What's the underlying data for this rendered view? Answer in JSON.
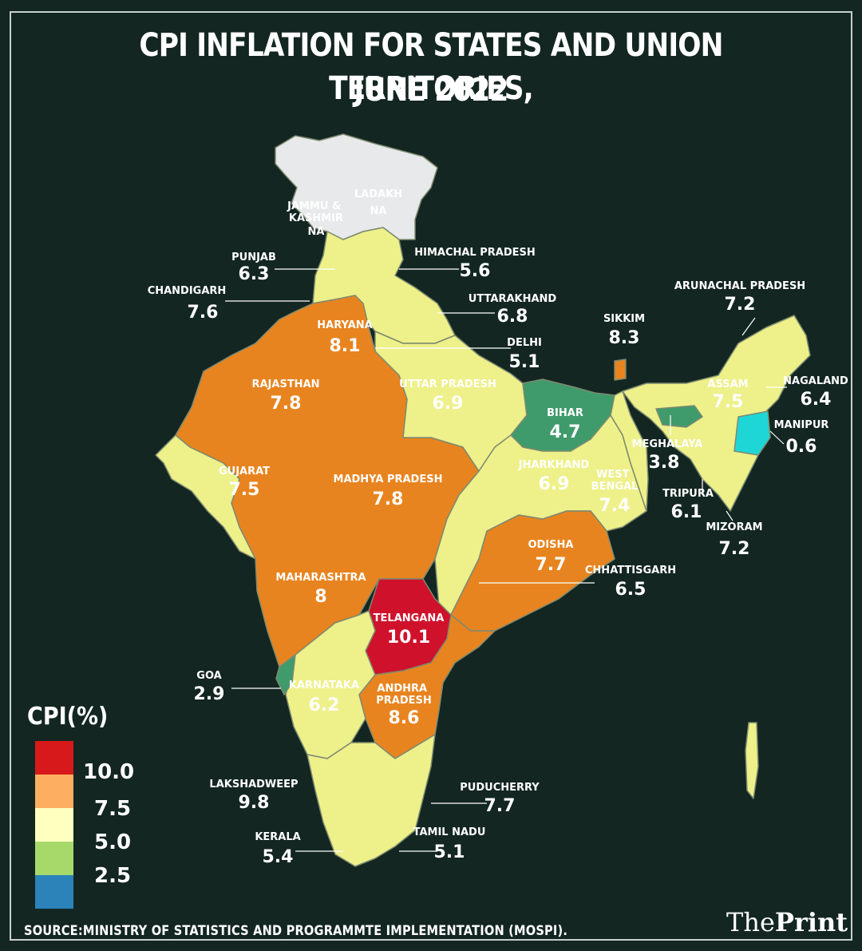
{
  "title_line1": "CPI INFLATION FOR STATES AND UNION TERRITORIES,",
  "title_line2": "JUNE 2022",
  "legend": {
    "title": "CPI(%)",
    "scale": [
      {
        "label": "10.0",
        "color": "#d7191c"
      },
      {
        "label": "7.5",
        "color": "#fdae61"
      },
      {
        "label": "5.0",
        "color": "#ffffbf"
      },
      {
        "label": "2.5",
        "color": "#a6d96a"
      },
      {
        "label": "",
        "color": "#2b83ba"
      }
    ]
  },
  "colors": {
    "background": "#132621",
    "na": "#e8e9ea",
    "low_green": "#3f9b6b",
    "yellow": "#eef08a",
    "orange": "#e8841f",
    "red": "#d0112b",
    "cyan": "#1fd6d6"
  },
  "regions": [
    {
      "name": "LADAKH",
      "value": "NA"
    },
    {
      "name": "JAMMU & KASHMIR",
      "value": "NA"
    },
    {
      "name": "PUNJAB",
      "value": "6.3"
    },
    {
      "name": "HIMACHAL PRADESH",
      "value": "5.6"
    },
    {
      "name": "CHANDIGARH",
      "value": "7.6"
    },
    {
      "name": "UTTARAKHAND",
      "value": "6.8"
    },
    {
      "name": "HARYANA",
      "value": "8.1"
    },
    {
      "name": "DELHI",
      "value": "5.1"
    },
    {
      "name": "RAJASTHAN",
      "value": "7.8"
    },
    {
      "name": "UTTAR PRADESH",
      "value": "6.9"
    },
    {
      "name": "BIHAR",
      "value": "4.7"
    },
    {
      "name": "SIKKIM",
      "value": "8.3"
    },
    {
      "name": "ARUNACHAL PRADESH",
      "value": "7.2"
    },
    {
      "name": "ASSAM",
      "value": "7.5"
    },
    {
      "name": "NAGALAND",
      "value": "6.4"
    },
    {
      "name": "MANIPUR",
      "value": "0.6"
    },
    {
      "name": "MEGHALAYA",
      "value": "3.8"
    },
    {
      "name": "GUJARAT",
      "value": "7.5"
    },
    {
      "name": "MADHYA PRADESH",
      "value": "7.8"
    },
    {
      "name": "JHARKHAND",
      "value": "6.9"
    },
    {
      "name": "WEST BENGAL",
      "value": "7.4"
    },
    {
      "name": "TRIPURA",
      "value": "6.1"
    },
    {
      "name": "MIZORAM",
      "value": "7.2"
    },
    {
      "name": "ODISHA",
      "value": "7.7"
    },
    {
      "name": "CHHATTISGARH",
      "value": "6.5"
    },
    {
      "name": "MAHARASHTRA",
      "value": "8"
    },
    {
      "name": "TELANGANA",
      "value": "10.1"
    },
    {
      "name": "GOA",
      "value": "2.9"
    },
    {
      "name": "KARNATAKA",
      "value": "6.2"
    },
    {
      "name": "ANDHRA PRADESH",
      "value": "8.6"
    },
    {
      "name": "LAKSHADWEEP",
      "value": "9.8"
    },
    {
      "name": "PUDUCHERRY",
      "value": "7.7"
    },
    {
      "name": "KERALA",
      "value": "5.4"
    },
    {
      "name": "TAMIL NADU",
      "value": "5.1"
    }
  ],
  "source": "SOURCE:MINISTRY OF STATISTICS AND PROGRAMMTE IMPLEMENTATION (MOSPI).",
  "brand": {
    "part1": "The",
    "part2": "Print"
  }
}
